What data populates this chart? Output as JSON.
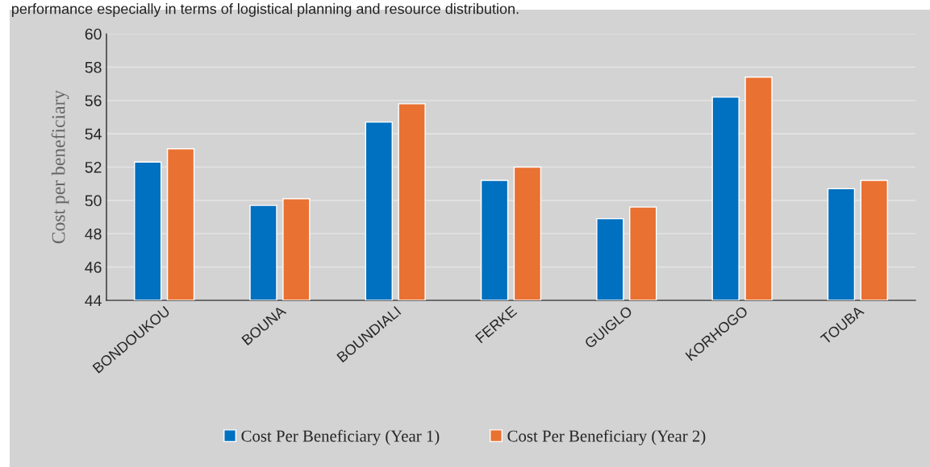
{
  "chart_data": {
    "type": "bar",
    "categories": [
      "BONDOUKOU",
      "BOUNA",
      "BOUNDIALI",
      "FERKE",
      "GUIGLO",
      "KORHOGO",
      "TOUBA"
    ],
    "series": [
      {
        "name": "Cost Per Beneficiary (Year 1)",
        "color": "#0070c0",
        "values": [
          52.3,
          49.7,
          54.7,
          51.2,
          48.9,
          56.2,
          50.7
        ]
      },
      {
        "name": "Cost Per Beneficiary (Year 2)",
        "color": "#e97132",
        "values": [
          53.1,
          50.1,
          55.8,
          52.0,
          49.6,
          57.4,
          51.2
        ]
      }
    ],
    "ylabel": "Cost per beneficiary",
    "ylim": [
      44,
      60
    ],
    "yticks": [
      44,
      46,
      48,
      50,
      52,
      54,
      56,
      58,
      60
    ],
    "grid": "y",
    "legend": "bottom",
    "annotations": [
      "performance especially in terms of logistical planning and resource distribution."
    ]
  }
}
